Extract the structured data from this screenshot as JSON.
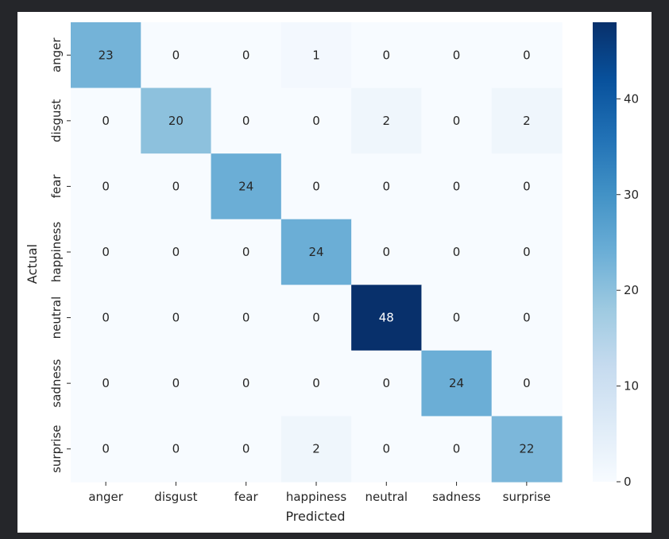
{
  "chart_data": {
    "type": "heatmap",
    "xlabel": "Predicted",
    "ylabel": "Actual",
    "x_categories": [
      "anger",
      "disgust",
      "fear",
      "happiness",
      "neutral",
      "sadness",
      "surprise"
    ],
    "y_categories": [
      "anger",
      "disgust",
      "fear",
      "happiness",
      "neutral",
      "sadness",
      "surprise"
    ],
    "values": [
      [
        23,
        0,
        0,
        1,
        0,
        0,
        0
      ],
      [
        0,
        20,
        0,
        0,
        2,
        0,
        2
      ],
      [
        0,
        0,
        24,
        0,
        0,
        0,
        0
      ],
      [
        0,
        0,
        0,
        24,
        0,
        0,
        0
      ],
      [
        0,
        0,
        0,
        0,
        48,
        0,
        0
      ],
      [
        0,
        0,
        0,
        0,
        0,
        24,
        0
      ],
      [
        0,
        0,
        0,
        2,
        0,
        0,
        22
      ]
    ],
    "colorbar": {
      "min": 0,
      "max": 48,
      "ticks": [
        0,
        10,
        20,
        30,
        40
      ],
      "colormap": "Blues"
    }
  }
}
